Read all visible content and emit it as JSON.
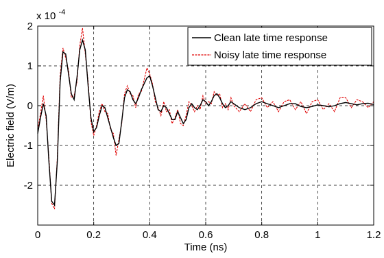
{
  "chart_data": {
    "type": "line",
    "xlabel": "Time (ns)",
    "ylabel": "Electric field (V/m)",
    "y_exponent_label": "x 10",
    "y_exponent": "-4",
    "xlim": [
      0,
      1.2
    ],
    "ylim": [
      -3,
      2
    ],
    "x_ticks": [
      0,
      0.2,
      0.4,
      0.6,
      0.8,
      1,
      1.2
    ],
    "x_tick_labels": [
      "0",
      "0.2",
      "0.4",
      "0.6",
      "0.8",
      "1",
      "1.2"
    ],
    "y_ticks": [
      -2,
      -1,
      0,
      1,
      2
    ],
    "y_tick_labels": [
      "-2",
      "-1",
      "0",
      "1",
      "2"
    ],
    "grid": true,
    "legend_position": "top-right",
    "series": [
      {
        "name": "Clean late time response",
        "color": "#000000",
        "style": "solid",
        "x": [
          0,
          0.01,
          0.02,
          0.03,
          0.04,
          0.05,
          0.06,
          0.07,
          0.08,
          0.09,
          0.1,
          0.11,
          0.12,
          0.13,
          0.14,
          0.15,
          0.16,
          0.17,
          0.18,
          0.19,
          0.2,
          0.21,
          0.22,
          0.23,
          0.24,
          0.25,
          0.26,
          0.27,
          0.28,
          0.29,
          0.3,
          0.31,
          0.32,
          0.33,
          0.34,
          0.35,
          0.36,
          0.37,
          0.38,
          0.39,
          0.4,
          0.41,
          0.42,
          0.43,
          0.44,
          0.45,
          0.46,
          0.47,
          0.48,
          0.49,
          0.5,
          0.51,
          0.52,
          0.53,
          0.54,
          0.55,
          0.56,
          0.57,
          0.58,
          0.59,
          0.6,
          0.61,
          0.62,
          0.63,
          0.64,
          0.65,
          0.66,
          0.67,
          0.68,
          0.69,
          0.7,
          0.72,
          0.74,
          0.76,
          0.78,
          0.8,
          0.82,
          0.84,
          0.86,
          0.88,
          0.9,
          0.92,
          0.94,
          0.96,
          0.98,
          1.0,
          1.02,
          1.04,
          1.06,
          1.08,
          1.1,
          1.12,
          1.14,
          1.16,
          1.18,
          1.2
        ],
        "y": [
          -0.7,
          -0.3,
          0.05,
          -0.25,
          -1.4,
          -2.4,
          -2.5,
          -1.4,
          0.6,
          1.35,
          1.3,
          0.8,
          0.3,
          0.15,
          0.7,
          1.4,
          1.65,
          1.4,
          0.5,
          -0.3,
          -0.65,
          -0.55,
          -0.25,
          0.0,
          -0.05,
          -0.3,
          -0.55,
          -0.8,
          -1.0,
          -0.95,
          -0.4,
          0.2,
          0.4,
          0.35,
          0.15,
          0.05,
          0.2,
          0.4,
          0.55,
          0.7,
          0.75,
          0.5,
          0.2,
          -0.1,
          -0.15,
          0.0,
          -0.05,
          -0.2,
          -0.35,
          -0.35,
          -0.15,
          -0.3,
          -0.45,
          -0.35,
          -0.05,
          0.05,
          -0.05,
          -0.1,
          0.0,
          0.15,
          0.1,
          0.0,
          0.1,
          0.25,
          0.3,
          0.2,
          0.05,
          -0.05,
          0.0,
          0.1,
          0.05,
          -0.05,
          -0.1,
          -0.05,
          0.05,
          0.1,
          0.05,
          0.0,
          -0.05,
          0.0,
          0.05,
          0.05,
          -0.02,
          -0.05,
          -0.02,
          0.02,
          0.0,
          -0.03,
          0.0,
          0.05,
          0.08,
          0.05,
          0.02,
          0.05,
          0.06,
          0.03
        ]
      },
      {
        "name": "Noisy late time response",
        "color": "#e00000",
        "style": "dashed",
        "noise_note_hidden": true,
        "x": [
          0,
          0.01,
          0.02,
          0.03,
          0.04,
          0.05,
          0.06,
          0.07,
          0.08,
          0.09,
          0.1,
          0.11,
          0.12,
          0.13,
          0.14,
          0.15,
          0.16,
          0.17,
          0.18,
          0.19,
          0.2,
          0.21,
          0.22,
          0.23,
          0.24,
          0.25,
          0.26,
          0.27,
          0.28,
          0.29,
          0.3,
          0.31,
          0.32,
          0.33,
          0.34,
          0.35,
          0.36,
          0.37,
          0.38,
          0.39,
          0.4,
          0.41,
          0.42,
          0.43,
          0.44,
          0.45,
          0.46,
          0.47,
          0.48,
          0.49,
          0.5,
          0.51,
          0.52,
          0.53,
          0.54,
          0.55,
          0.56,
          0.57,
          0.58,
          0.59,
          0.6,
          0.61,
          0.62,
          0.63,
          0.64,
          0.65,
          0.66,
          0.67,
          0.68,
          0.69,
          0.7,
          0.72,
          0.74,
          0.76,
          0.78,
          0.8,
          0.82,
          0.84,
          0.86,
          0.88,
          0.9,
          0.92,
          0.94,
          0.96,
          0.98,
          1.0,
          1.02,
          1.04,
          1.06,
          1.08,
          1.1,
          1.12,
          1.14,
          1.16,
          1.18,
          1.2
        ],
        "y": [
          -0.6,
          -0.2,
          0.25,
          -0.35,
          -1.3,
          -2.45,
          -2.6,
          -1.3,
          0.75,
          1.45,
          1.2,
          0.9,
          0.2,
          0.25,
          0.6,
          1.5,
          1.95,
          1.3,
          0.6,
          -0.4,
          -0.75,
          -0.5,
          -0.15,
          0.05,
          -0.15,
          -0.2,
          -0.6,
          -0.7,
          -1.25,
          -0.85,
          -0.45,
          0.3,
          0.5,
          0.3,
          0.25,
          -0.05,
          0.3,
          0.35,
          0.65,
          0.95,
          0.8,
          0.55,
          0.1,
          -0.05,
          -0.25,
          0.1,
          -0.15,
          -0.1,
          -0.45,
          -0.3,
          -0.1,
          -0.45,
          -0.5,
          -0.25,
          0.1,
          0.0,
          -0.15,
          0.0,
          -0.1,
          0.25,
          0.05,
          0.1,
          0.05,
          0.35,
          0.25,
          0.3,
          -0.05,
          0.05,
          -0.1,
          0.2,
          0.0,
          -0.15,
          0.05,
          -0.15,
          0.15,
          0.2,
          -0.05,
          0.1,
          -0.15,
          0.1,
          0.15,
          -0.1,
          0.1,
          -0.2,
          0.1,
          0.15,
          -0.1,
          0.05,
          -0.15,
          0.2,
          0.2,
          -0.05,
          0.15,
          0.1,
          -0.05,
          0.1
        ]
      }
    ]
  }
}
